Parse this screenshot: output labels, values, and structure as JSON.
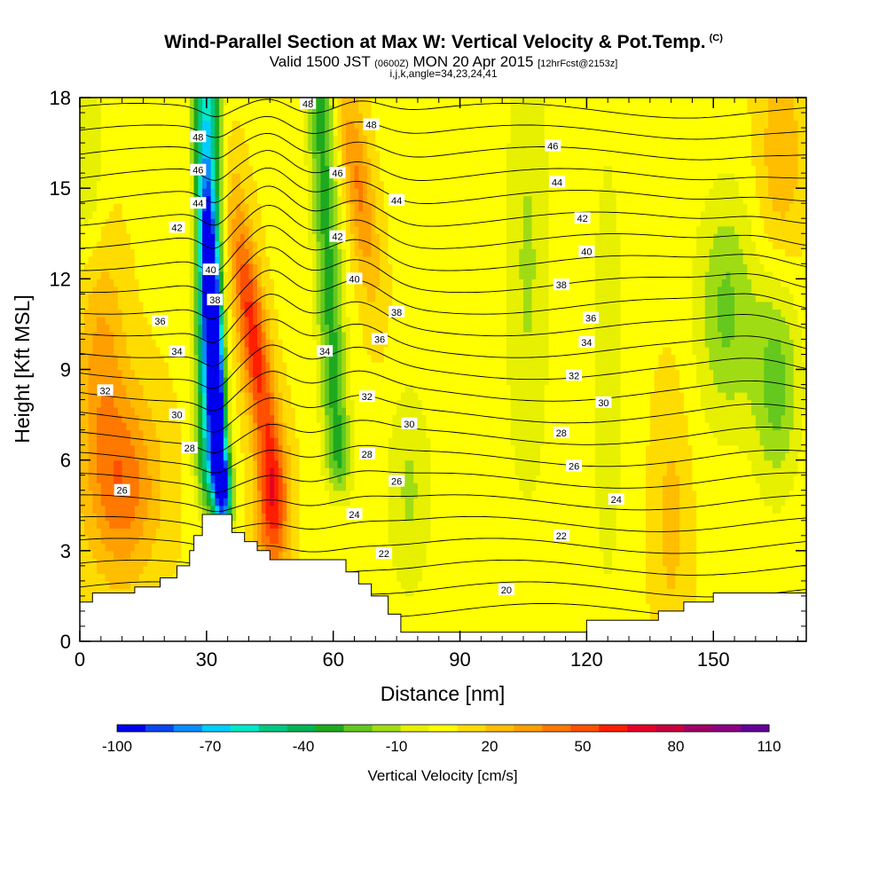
{
  "title": {
    "main": "Wind-Parallel Section at Max W: Vertical Velocity & Pot.Temp.",
    "tag": "(C)",
    "line2_a": "Valid 1500 JST",
    "line2_b": "(0600Z)",
    "line2_c": "MON 20 Apr 2015",
    "line2_d": "[12hrFcst@2153z]",
    "line3": "i,j,k,angle=34,23,24,41"
  },
  "chart_data": {
    "type": "heatmap",
    "xlabel": "Distance [nm]",
    "ylabel": "Height [Kft MSL]",
    "xlim": [
      0,
      172
    ],
    "ylim": [
      0,
      18
    ],
    "xticks": [
      0,
      30,
      60,
      90,
      120,
      150
    ],
    "yticks": [
      0,
      3,
      6,
      9,
      12,
      15,
      18
    ],
    "colorbar": {
      "label": "Vertical Velocity [cm/s]",
      "tick_labels": [
        "-100",
        "-70",
        "-40",
        "-10",
        "20",
        "50",
        "80",
        "110"
      ],
      "tick_values": [
        -100,
        -70,
        -40,
        -10,
        20,
        50,
        80,
        110
      ],
      "colors": [
        "#0000ee",
        "#0a46f0",
        "#0a8cff",
        "#00cdff",
        "#00e8c8",
        "#00c882",
        "#00b454",
        "#1eaa1e",
        "#64c81e",
        "#a0dc14",
        "#e6f000",
        "#ffff00",
        "#ffdc00",
        "#ffbe00",
        "#ffa000",
        "#ff7800",
        "#ff5000",
        "#ff1e00",
        "#e60028",
        "#c8003c",
        "#a00064",
        "#8c0082",
        "#64009a"
      ]
    },
    "contour_field": "Potential temperature",
    "contour_labels": [
      {
        "text": "48",
        "x": 54,
        "y": 17.8
      },
      {
        "text": "48",
        "x": 28,
        "y": 16.7
      },
      {
        "text": "48",
        "x": 69,
        "y": 17.1
      },
      {
        "text": "46",
        "x": 28,
        "y": 15.6
      },
      {
        "text": "46",
        "x": 61,
        "y": 15.5
      },
      {
        "text": "46",
        "x": 112,
        "y": 16.4
      },
      {
        "text": "44",
        "x": 28,
        "y": 14.5
      },
      {
        "text": "44",
        "x": 75,
        "y": 14.6
      },
      {
        "text": "44",
        "x": 113,
        "y": 15.2
      },
      {
        "text": "42",
        "x": 23,
        "y": 13.7
      },
      {
        "text": "42",
        "x": 61,
        "y": 13.4
      },
      {
        "text": "42",
        "x": 119,
        "y": 14.0
      },
      {
        "text": "40",
        "x": 31,
        "y": 12.3
      },
      {
        "text": "40",
        "x": 65,
        "y": 12.0
      },
      {
        "text": "40",
        "x": 120,
        "y": 12.9
      },
      {
        "text": "38",
        "x": 32,
        "y": 11.3
      },
      {
        "text": "38",
        "x": 75,
        "y": 10.9
      },
      {
        "text": "38",
        "x": 114,
        "y": 11.8
      },
      {
        "text": "36",
        "x": 19,
        "y": 10.6
      },
      {
        "text": "36",
        "x": 71,
        "y": 10.0
      },
      {
        "text": "36",
        "x": 121,
        "y": 10.7
      },
      {
        "text": "34",
        "x": 23,
        "y": 9.6
      },
      {
        "text": "34",
        "x": 58,
        "y": 9.6
      },
      {
        "text": "34",
        "x": 120,
        "y": 9.9
      },
      {
        "text": "32",
        "x": 6,
        "y": 8.3
      },
      {
        "text": "32",
        "x": 68,
        "y": 8.1
      },
      {
        "text": "32",
        "x": 117,
        "y": 8.8
      },
      {
        "text": "30",
        "x": 23,
        "y": 7.5
      },
      {
        "text": "30",
        "x": 78,
        "y": 7.2
      },
      {
        "text": "30",
        "x": 124,
        "y": 7.9
      },
      {
        "text": "28",
        "x": 26,
        "y": 6.4
      },
      {
        "text": "28",
        "x": 68,
        "y": 6.2
      },
      {
        "text": "28",
        "x": 114,
        "y": 6.9
      },
      {
        "text": "26",
        "x": 10,
        "y": 5.0
      },
      {
        "text": "26",
        "x": 75,
        "y": 5.3
      },
      {
        "text": "26",
        "x": 117,
        "y": 5.8
      },
      {
        "text": "24",
        "x": 65,
        "y": 4.2
      },
      {
        "text": "24",
        "x": 127,
        "y": 4.7
      },
      {
        "text": "22",
        "x": 72,
        "y": 2.9
      },
      {
        "text": "22",
        "x": 114,
        "y": 3.5
      },
      {
        "text": "20",
        "x": 101,
        "y": 1.7
      }
    ],
    "terrain": [
      [
        0,
        1.3
      ],
      [
        3,
        1.3
      ],
      [
        3,
        1.6
      ],
      [
        13,
        1.6
      ],
      [
        13,
        1.8
      ],
      [
        19,
        1.8
      ],
      [
        19,
        2.1
      ],
      [
        23,
        2.1
      ],
      [
        23,
        2.5
      ],
      [
        26,
        2.5
      ],
      [
        26,
        3.0
      ],
      [
        27,
        3.0
      ],
      [
        27,
        3.5
      ],
      [
        29,
        3.5
      ],
      [
        29,
        4.2
      ],
      [
        36,
        4.2
      ],
      [
        36,
        3.6
      ],
      [
        39,
        3.6
      ],
      [
        39,
        3.3
      ],
      [
        42,
        3.3
      ],
      [
        42,
        3.0
      ],
      [
        45,
        3.0
      ],
      [
        45,
        2.7
      ],
      [
        63,
        2.7
      ],
      [
        63,
        2.3
      ],
      [
        66,
        2.3
      ],
      [
        66,
        1.9
      ],
      [
        69,
        1.9
      ],
      [
        69,
        1.5
      ],
      [
        73,
        1.5
      ],
      [
        73,
        0.9
      ],
      [
        76,
        0.9
      ],
      [
        76,
        0.3
      ],
      [
        92,
        0.3
      ],
      [
        92,
        0.3
      ],
      [
        120,
        0.3
      ],
      [
        120,
        0.7
      ],
      [
        137,
        0.7
      ],
      [
        137,
        1.0
      ],
      [
        143,
        1.0
      ],
      [
        143,
        1.3
      ],
      [
        150,
        1.3
      ],
      [
        150,
        1.6
      ],
      [
        172,
        1.6
      ],
      [
        172,
        0
      ],
      [
        0,
        0
      ]
    ]
  }
}
